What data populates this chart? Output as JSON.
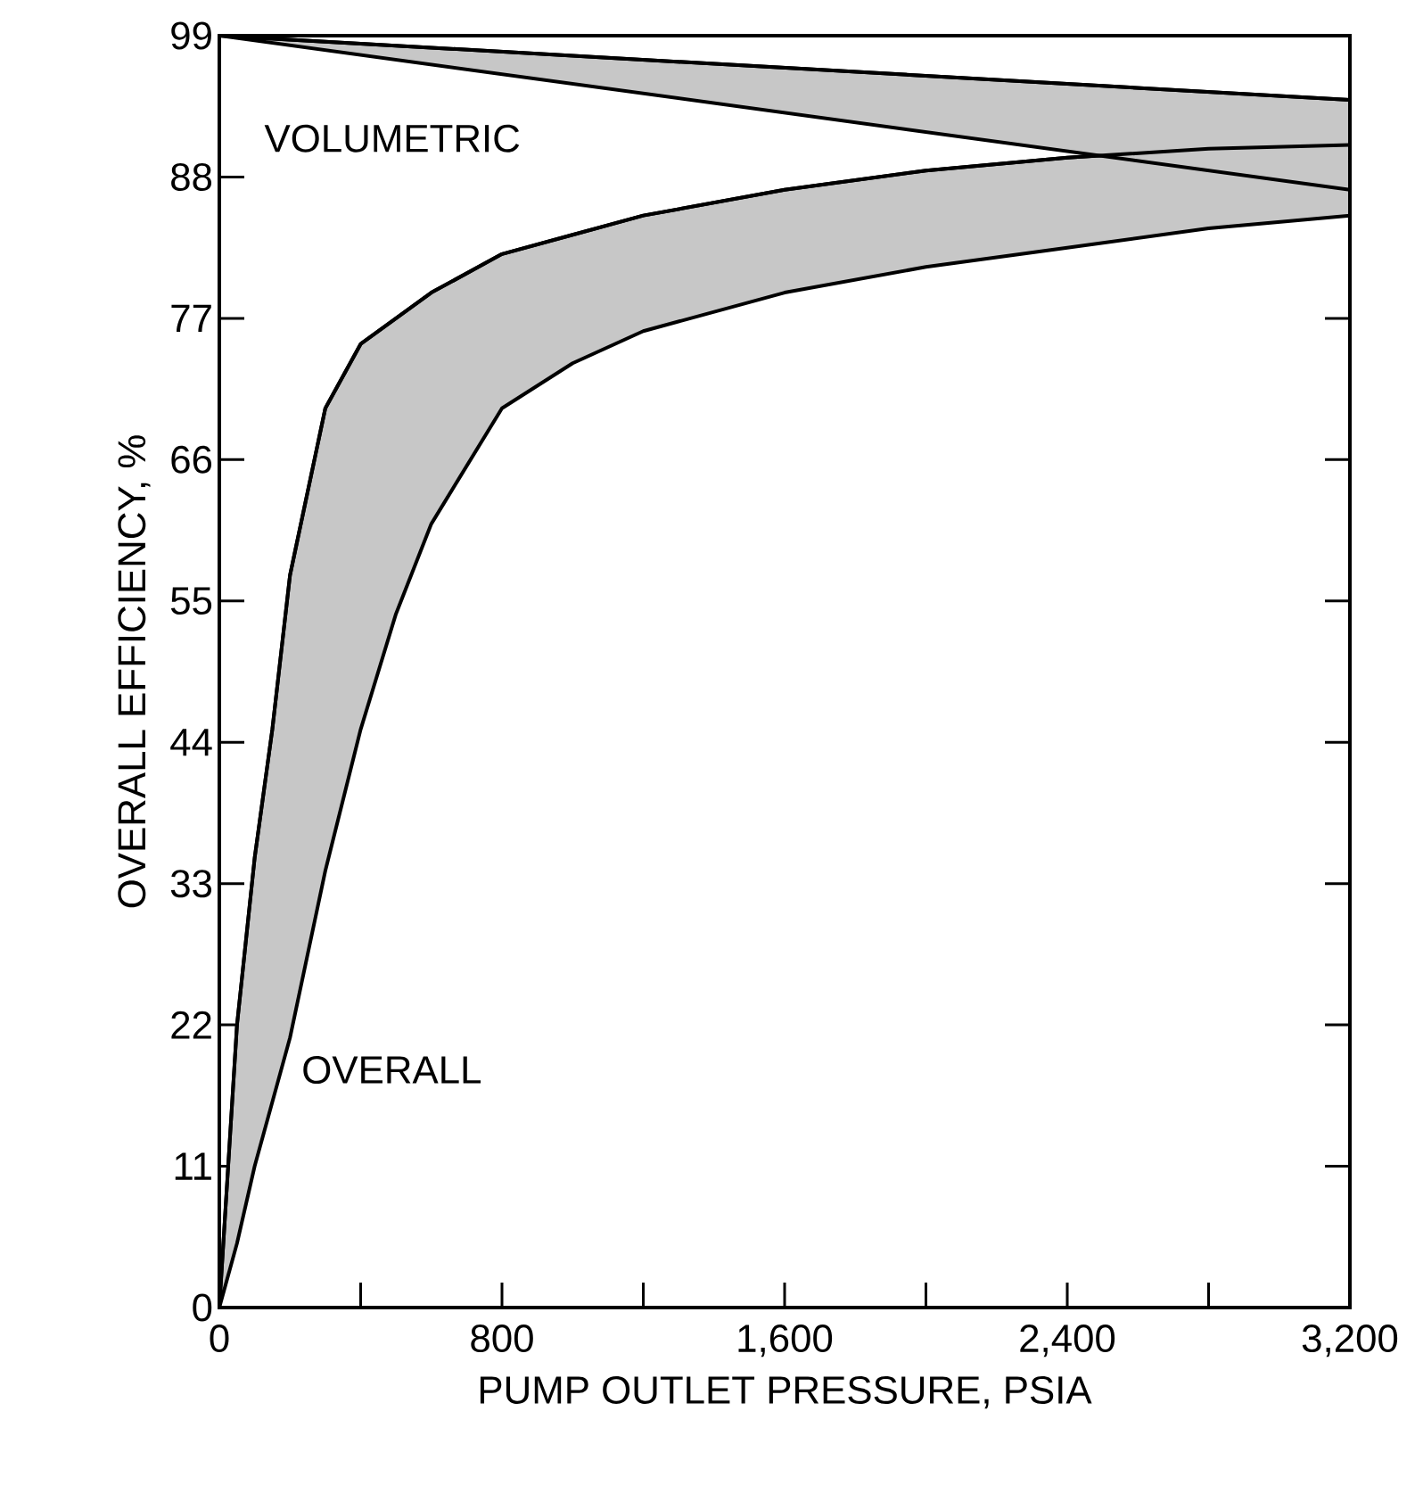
{
  "chart_data": {
    "type": "line",
    "xlabel": "PUMP OUTLET PRESSURE, PSIA",
    "ylabel": "OVERALL EFFICIENCY, %",
    "xlim": [
      0,
      3200
    ],
    "ylim": [
      0,
      99
    ],
    "xticks": [
      0,
      {
        "value": 400,
        "label": null
      },
      800,
      {
        "value": 1200,
        "label": null
      },
      {
        "value": 1600,
        "label": "1,600"
      },
      {
        "value": 2000,
        "label": null
      },
      {
        "value": 2400,
        "label": "2,400"
      },
      {
        "value": 2800,
        "label": null
      },
      {
        "value": 3200,
        "label": "3,200"
      }
    ],
    "yticks": [
      0,
      11,
      22,
      33,
      44,
      55,
      66,
      77,
      88,
      99
    ],
    "grid": false,
    "series": [
      {
        "name": "OVERALL",
        "color": "#000000",
        "x": [
          0,
          50,
          100,
          150,
          200,
          300,
          400,
          500,
          600,
          800,
          1000,
          1200,
          1600,
          2000,
          2400,
          2800,
          3200
        ],
        "values": [
          0,
          22,
          35,
          45,
          57,
          70,
          75,
          77,
          79,
          82,
          83.5,
          85,
          87,
          88.5,
          89.5,
          90.2,
          90.5
        ],
        "upper": [
          0,
          22,
          35,
          45,
          57,
          70,
          75,
          77,
          79,
          82,
          83.5,
          85,
          87,
          88.5,
          89.5,
          90.2,
          90.5
        ],
        "lower": [
          0,
          5,
          11,
          16,
          21,
          34,
          45,
          54,
          61,
          70,
          73.5,
          76,
          79,
          81,
          82.5,
          84,
          85
        ]
      },
      {
        "name": "VOLUMETRIC",
        "color": "#000000",
        "x": [
          0,
          3200
        ],
        "values": [
          99,
          94
        ],
        "upper": [
          99,
          94
        ],
        "lower": [
          99,
          87
        ]
      }
    ]
  }
}
